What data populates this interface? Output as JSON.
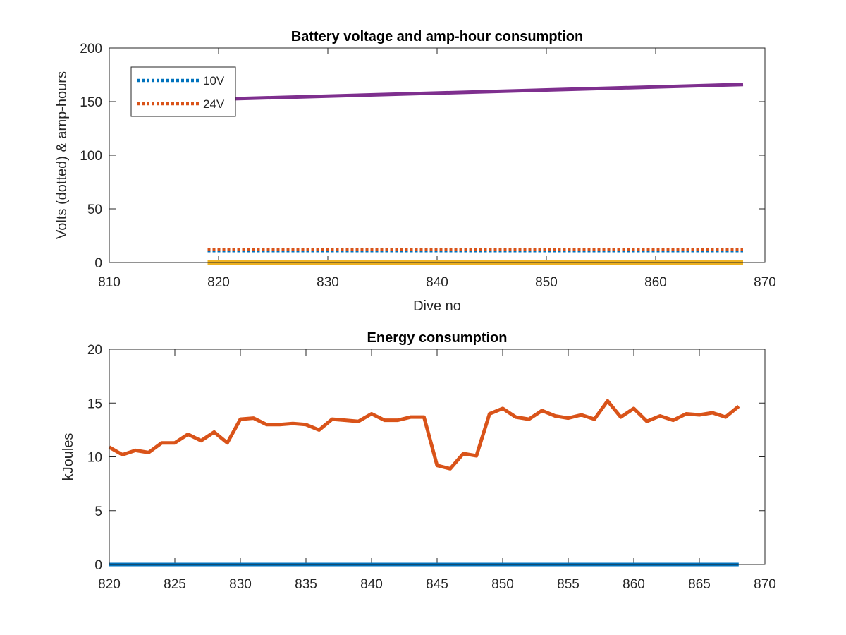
{
  "chart_data": [
    {
      "type": "line",
      "title": "Battery voltage and amp-hour consumption",
      "xlabel": "Dive no",
      "ylabel": "Volts (dotted) & amp-hours",
      "xlim": [
        810,
        870
      ],
      "ylim": [
        0,
        200
      ],
      "xticks": [
        810,
        820,
        830,
        840,
        850,
        860,
        870
      ],
      "yticks": [
        0,
        50,
        100,
        150,
        200
      ],
      "grid": false,
      "legend_position": "top-left",
      "series": [
        {
          "name": "10V",
          "style": "dotted",
          "color": "#0072BD",
          "x": [
            819,
            868
          ],
          "y": [
            11,
            11
          ]
        },
        {
          "name": "24V",
          "style": "dotted",
          "color": "#D95319",
          "x": [
            819,
            868
          ],
          "y": [
            12,
            12
          ]
        },
        {
          "style": "solid",
          "color": "#EDB120",
          "x": [
            819,
            868
          ],
          "y": [
            0,
            0
          ]
        },
        {
          "style": "solid",
          "color": "#7E2F8E",
          "x": [
            819,
            868
          ],
          "y": [
            152,
            166
          ]
        }
      ]
    },
    {
      "type": "line",
      "title": "Energy consumption",
      "xlabel": "",
      "ylabel": "kJoules",
      "xlim": [
        820,
        870
      ],
      "ylim": [
        0,
        20
      ],
      "xticks": [
        820,
        825,
        830,
        835,
        840,
        845,
        850,
        855,
        860,
        865,
        870
      ],
      "yticks": [
        0,
        5,
        10,
        15,
        20
      ],
      "grid": false,
      "series": [
        {
          "style": "solid",
          "color": "#0072BD",
          "x": [
            820,
            868
          ],
          "y": [
            0,
            0
          ]
        },
        {
          "style": "solid",
          "color": "#D95319",
          "x": [
            820,
            821,
            822,
            823,
            824,
            825,
            826,
            827,
            828,
            829,
            830,
            831,
            832,
            833,
            834,
            835,
            836,
            837,
            838,
            839,
            840,
            841,
            842,
            843,
            844,
            845,
            846,
            847,
            848,
            849,
            850,
            851,
            852,
            853,
            854,
            855,
            856,
            857,
            858,
            859,
            860,
            861,
            862,
            863,
            864,
            865,
            866,
            867,
            868
          ],
          "y": [
            10.9,
            10.2,
            10.6,
            10.4,
            11.3,
            11.3,
            12.1,
            11.5,
            12.3,
            11.3,
            13.5,
            13.6,
            13.0,
            13.0,
            13.1,
            13.0,
            12.5,
            13.5,
            13.4,
            13.3,
            14.0,
            13.4,
            13.4,
            13.7,
            13.7,
            9.2,
            8.9,
            10.3,
            10.1,
            14.0,
            14.5,
            13.7,
            13.5,
            14.3,
            13.8,
            13.6,
            13.9,
            13.5,
            15.2,
            13.7,
            14.5,
            13.3,
            13.8,
            13.4,
            14.0,
            13.9,
            14.1,
            13.7,
            14.7
          ]
        }
      ]
    }
  ]
}
